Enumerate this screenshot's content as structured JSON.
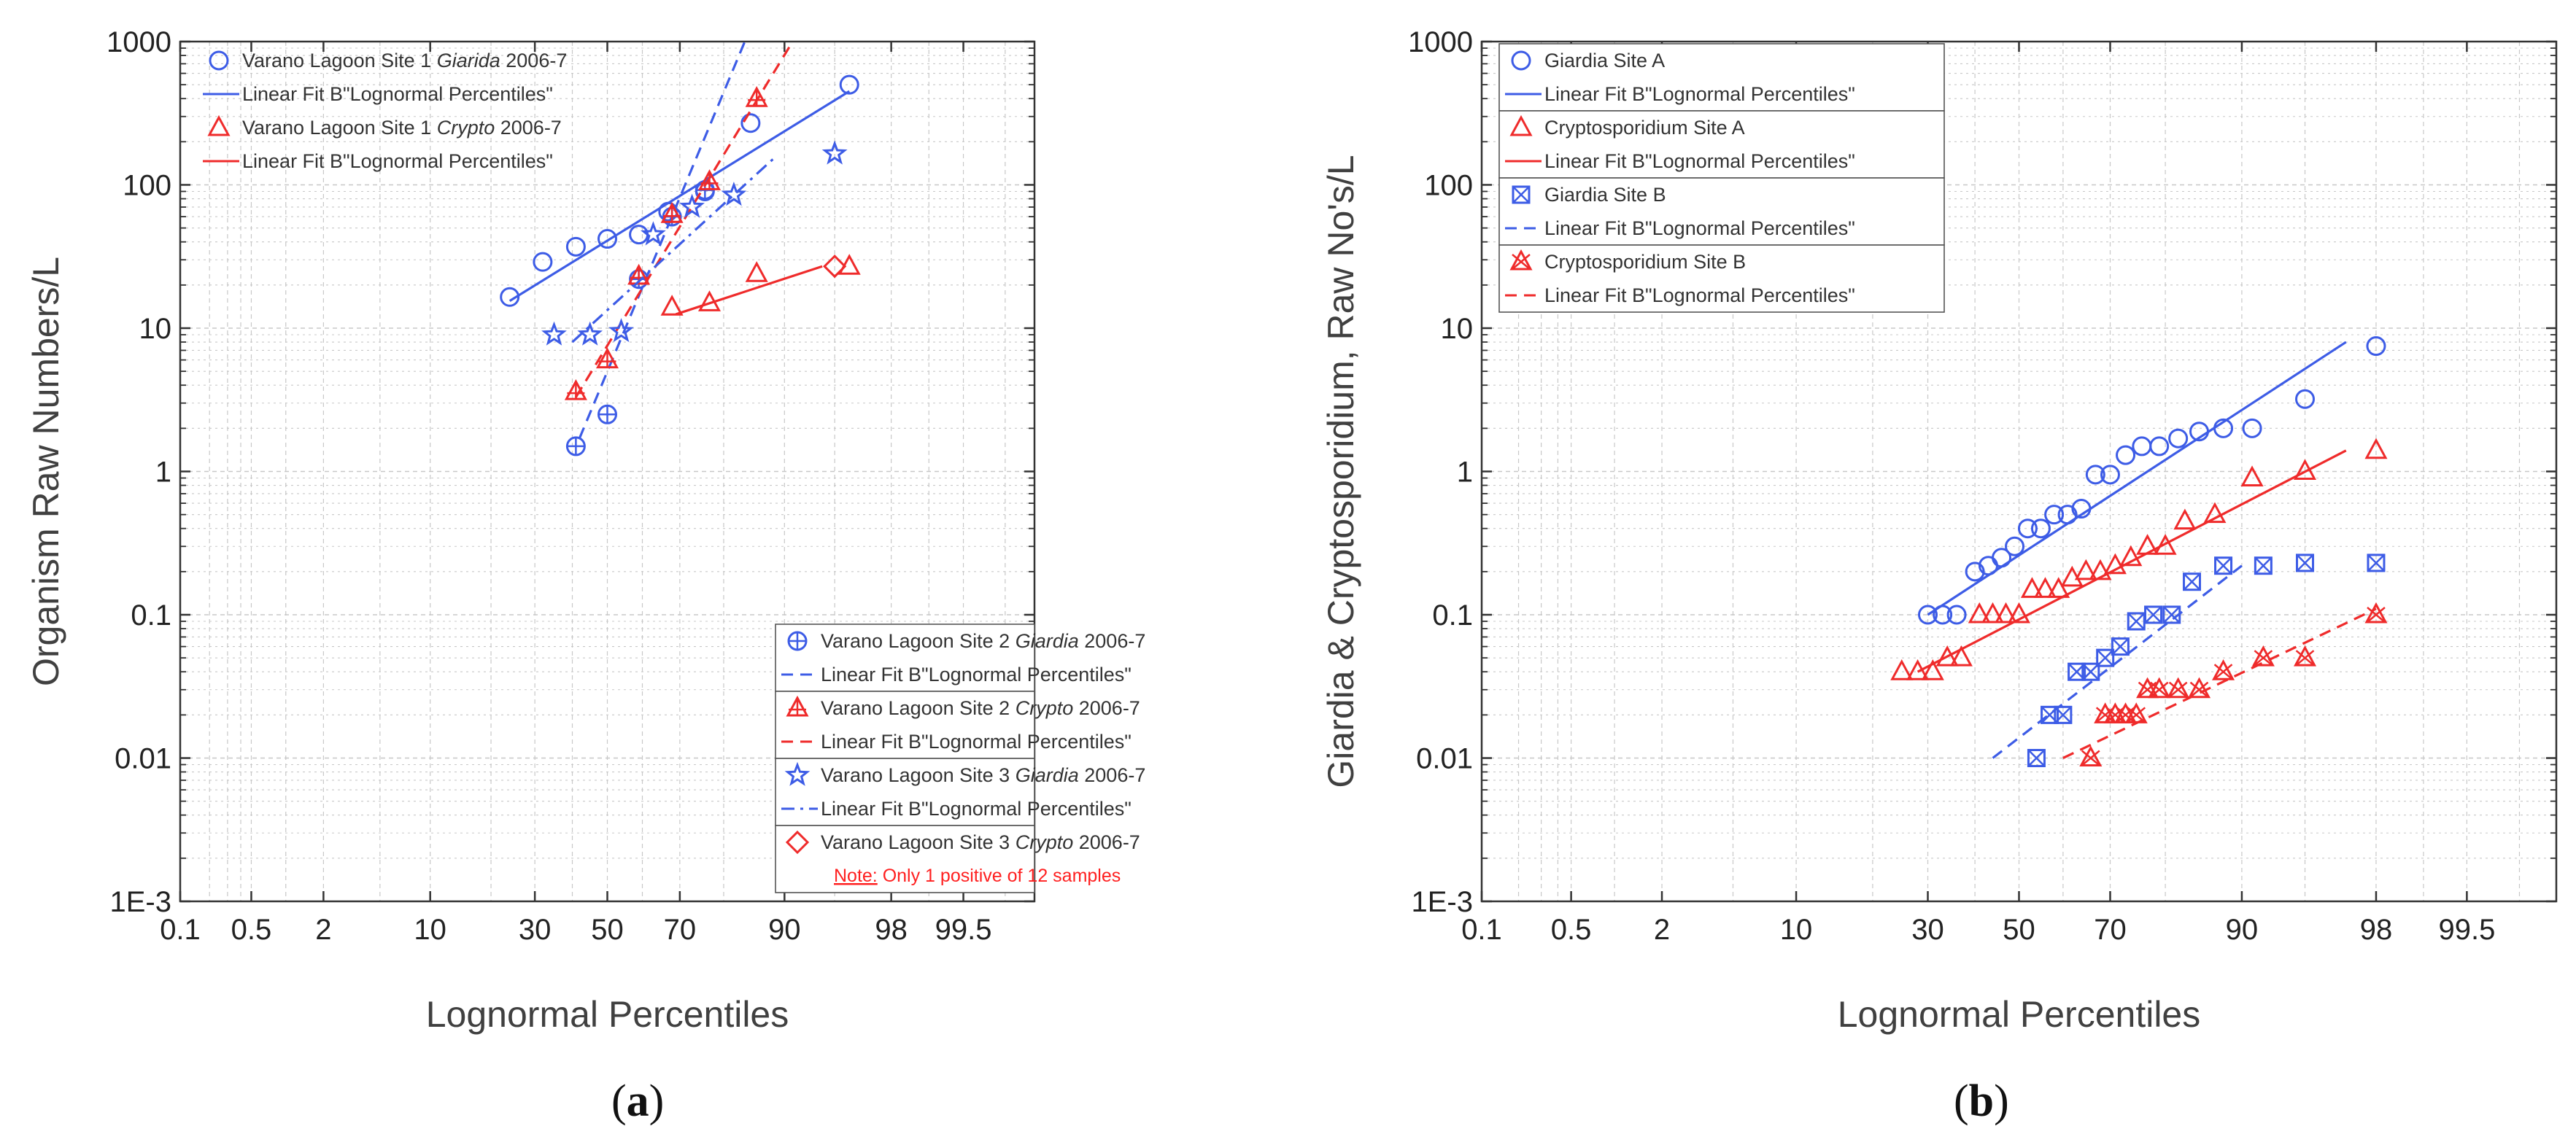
{
  "figure": {
    "colors": {
      "blue": "#3d5ce6",
      "red": "#ef2b2b",
      "grid": "#c8c8c8",
      "frame": "#333333"
    }
  },
  "chart_data": [
    {
      "type": "scatter",
      "panel_label": "(a)",
      "panel_letter": "a",
      "xlabel": "Lognormal Percentiles",
      "ylabel": "Organism Raw Numbers/L",
      "x_scale": "probability (normal quantile)",
      "y_scale": "log",
      "xlim": [
        0.1,
        99.9
      ],
      "ylim": [
        0.001,
        1000
      ],
      "x_ticks": [
        0.1,
        0.5,
        2,
        10,
        30,
        50,
        70,
        90,
        98,
        99.5
      ],
      "x_tick_labels": [
        "0.1",
        "0.5",
        "2",
        "10",
        "30",
        "50",
        "70",
        "90",
        "98",
        "99.5"
      ],
      "y_ticks": [
        0.001,
        0.01,
        0.1,
        1,
        10,
        100,
        1000
      ],
      "y_tick_labels": [
        "1E-3",
        "0.01",
        "0.1",
        "1",
        "10",
        "100",
        "1000"
      ],
      "grid": true,
      "series": [
        {
          "name": "Varano Lagoon Site 1 Giarida 2006-7",
          "name_plain": "Varano Lagoon Site 1 ",
          "name_italic": "Giarida",
          "name_suffix": " 2006-7",
          "color": "#3d5ce6",
          "marker": "circle",
          "x": [
            24,
            32,
            41,
            50,
            59,
            67,
            76,
            85,
            96
          ],
          "y": [
            16.5,
            29,
            37,
            42,
            45,
            65,
            90,
            270,
            500
          ],
          "fit": {
            "label": "Linear Fit B\"Lognormal Percentiles\"",
            "dash": "solid",
            "x": [
              24,
              96
            ],
            "y": [
              15.5,
              450
            ]
          }
        },
        {
          "name": "Varano Lagoon Site 1 Crypto 2006-7",
          "name_plain": "Varano Lagoon Site 1 ",
          "name_italic": "Crypto",
          "name_suffix": " 2006-7",
          "color": "#ef2b2b",
          "marker": "triangle",
          "x": [
            68,
            77,
            86,
            96
          ],
          "y": [
            14,
            15,
            24,
            27
          ],
          "fit": {
            "label": "Linear Fit B\"Lognormal Percentiles\"",
            "dash": "solid",
            "x": [
              69,
              94
            ],
            "y": [
              12.5,
              27
            ]
          }
        },
        {
          "name": "Varano Lagoon Site 2 Giardia 2006-7",
          "name_plain": "Varano Lagoon Site 2 ",
          "name_italic": "Giardia",
          "name_suffix": " 2006-7",
          "color": "#3d5ce6",
          "marker": "circle-plus",
          "x": [
            41,
            50,
            59,
            68,
            76
          ],
          "y": [
            1.5,
            2.5,
            22,
            60,
            92
          ],
          "fit": {
            "label": "Linear Fit B\"Lognormal Percentiles\"",
            "dash": "dashed",
            "x": [
              42,
              84
            ],
            "y": [
              1.7,
              1000
            ]
          }
        },
        {
          "name": "Varano Lagoon Site 2 Crypto 2006-7",
          "name_plain": "Varano Lagoon Site 2 ",
          "name_italic": "Crypto",
          "name_suffix": " 2006-7",
          "color": "#ef2b2b",
          "marker": "triangle-plus",
          "x": [
            41,
            50,
            59,
            68,
            77,
            86
          ],
          "y": [
            3.6,
            6,
            23,
            62,
            105,
            400
          ],
          "fit": {
            "label": "Linear Fit B\"Lognormal Percentiles\"",
            "dash": "dashed",
            "x": [
              41,
              91
            ],
            "y": [
              3.3,
              1000
            ]
          }
        },
        {
          "name": "Varano Lagoon Site 3 Giardia 2006-7",
          "name_plain": "Varano Lagoon Site 3 ",
          "name_italic": "Giardia",
          "name_suffix": " 2006-7",
          "color": "#3d5ce6",
          "marker": "star",
          "x": [
            35,
            45,
            54,
            63,
            73,
            82,
            95
          ],
          "y": [
            9,
            9,
            9.5,
            45,
            70,
            85,
            165
          ],
          "fit": {
            "label": "Linear Fit B\"Lognormal Percentiles\"",
            "dash": "dash-dot",
            "x": [
              40,
              89
            ],
            "y": [
              8,
              160
            ]
          }
        },
        {
          "name": "Varano Lagoon Site 3 Crypto 2006-7",
          "name_plain": "Varano Lagoon Site 3 ",
          "name_italic": "Crypto",
          "name_suffix": " 2006-7",
          "color": "#ef2b2b",
          "marker": "diamond",
          "x": [
            95
          ],
          "y": [
            27
          ],
          "note": "Note: Only 1 positive of 12 samples"
        }
      ]
    },
    {
      "type": "scatter",
      "panel_label": "(b)",
      "panel_letter": "b",
      "xlabel": "Lognormal Percentiles",
      "ylabel": "Giardia & Cryptosporidium, Raw No's/L",
      "x_scale": "probability (normal quantile)",
      "y_scale": "log",
      "xlim": [
        0.1,
        99.9
      ],
      "ylim": [
        0.001,
        1000
      ],
      "x_ticks": [
        0.1,
        0.5,
        2,
        10,
        30,
        50,
        70,
        90,
        98,
        99.5
      ],
      "x_tick_labels": [
        "0.1",
        "0.5",
        "2",
        "10",
        "30",
        "50",
        "70",
        "90",
        "98",
        "99.5"
      ],
      "y_ticks": [
        0.001,
        0.01,
        0.1,
        1,
        10,
        100,
        1000
      ],
      "y_tick_labels": [
        "1E-3",
        "0.01",
        "0.1",
        "1",
        "10",
        "100",
        "1000"
      ],
      "grid": true,
      "series": [
        {
          "name": "Giardia Site A",
          "name_plain": "Giardia Site A",
          "name_italic": "",
          "name_suffix": "",
          "color": "#3d5ce6",
          "marker": "circle",
          "x": [
            30,
            33,
            36,
            40,
            43,
            46,
            49,
            52,
            55,
            58,
            61,
            64,
            67,
            70,
            73,
            76,
            79,
            82,
            85,
            88,
            91,
            95,
            98
          ],
          "y": [
            0.1,
            0.1,
            0.1,
            0.2,
            0.22,
            0.25,
            0.3,
            0.4,
            0.4,
            0.5,
            0.5,
            0.55,
            0.95,
            0.95,
            1.3,
            1.5,
            1.5,
            1.7,
            1.9,
            2.0,
            2.0,
            3.2,
            7.5
          ],
          "fit": {
            "label": "Linear Fit B\"Lognormal Percentiles\"",
            "dash": "solid",
            "x": [
              30,
              97
            ],
            "y": [
              0.1,
              8
            ]
          }
        },
        {
          "name": "Cryptosporidium Site A",
          "name_plain": "Cryptosporidium Site A",
          "name_italic": "",
          "name_suffix": "",
          "color": "#ef2b2b",
          "marker": "triangle",
          "x": [
            25,
            28,
            31,
            34,
            37,
            41,
            44,
            47,
            50,
            53,
            56,
            59,
            62,
            65,
            68,
            71,
            74,
            77,
            80,
            83,
            87,
            91,
            95,
            98
          ],
          "y": [
            0.04,
            0.04,
            0.04,
            0.05,
            0.05,
            0.1,
            0.1,
            0.1,
            0.1,
            0.15,
            0.15,
            0.15,
            0.18,
            0.2,
            0.2,
            0.22,
            0.25,
            0.3,
            0.3,
            0.45,
            0.5,
            0.9,
            1.0,
            1.4
          ],
          "fit": {
            "label": "Linear Fit B\"Lognormal Percentiles\"",
            "dash": "solid",
            "x": [
              28,
              97
            ],
            "y": [
              0.04,
              1.4
            ]
          }
        },
        {
          "name": "Giardia Site B",
          "name_plain": "Giardia Site B",
          "name_italic": "",
          "name_suffix": "",
          "color": "#3d5ce6",
          "marker": "square-x",
          "x": [
            54,
            57,
            60,
            63,
            66,
            69,
            72,
            75,
            78,
            81,
            84,
            88,
            92,
            95,
            98
          ],
          "y": [
            0.01,
            0.02,
            0.02,
            0.04,
            0.04,
            0.05,
            0.06,
            0.09,
            0.1,
            0.1,
            0.17,
            0.22,
            0.22,
            0.23,
            0.23
          ],
          "fit": {
            "label": "Linear Fit B\"Lognormal Percentiles\"",
            "dash": "dashed",
            "x": [
              44,
              90
            ],
            "y": [
              0.01,
              0.22
            ]
          }
        },
        {
          "name": "Cryptosporidium Site B",
          "name_plain": "Cryptosporidium Site B",
          "name_italic": "",
          "name_suffix": "",
          "color": "#ef2b2b",
          "marker": "triangle-x",
          "x": [
            66,
            69,
            71,
            73,
            75,
            77,
            79,
            82,
            85,
            88,
            92,
            95,
            98
          ],
          "y": [
            0.01,
            0.02,
            0.02,
            0.02,
            0.02,
            0.03,
            0.03,
            0.03,
            0.03,
            0.04,
            0.05,
            0.05,
            0.1
          ],
          "fit": {
            "label": "Linear Fit B\"Lognormal Percentiles\"",
            "dash": "dashed",
            "x": [
              60,
              98
            ],
            "y": [
              0.01,
              0.11
            ]
          }
        }
      ]
    }
  ]
}
